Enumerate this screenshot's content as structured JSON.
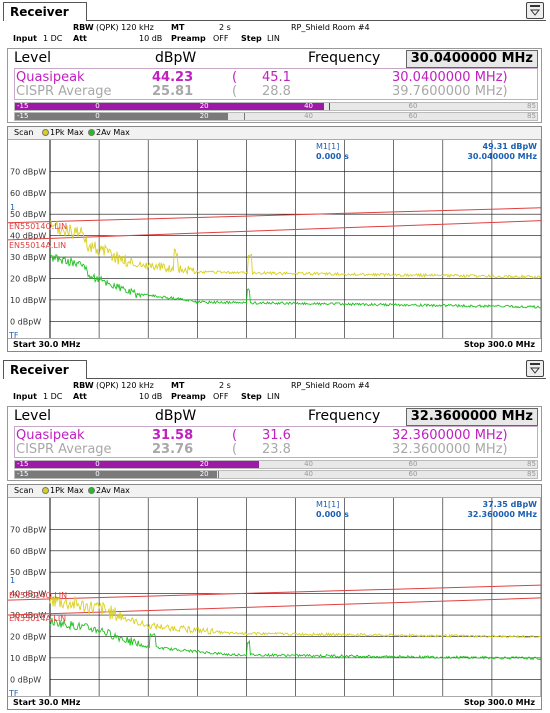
{
  "panels": [
    {
      "tab_label": "Receiver",
      "settings": {
        "rbw_label": "RBW",
        "rbw_value": "(QPK) 120 kHz",
        "mt_label": "MT",
        "mt_value": "2 s",
        "title": "RP_Shield Room #4",
        "input_label": "Input",
        "input_value": "1 DC",
        "att_label": "Att",
        "att_value": "10 dB",
        "preamp_label": "Preamp",
        "preamp_value": "OFF",
        "step_label": "Step",
        "step_value": "LIN"
      },
      "level_label": "Level",
      "unit_label": "dBpW",
      "frequency_label": "Frequency",
      "frequency_value": "30.0400000 MHz",
      "quasipeak": {
        "label": "Quasipeak",
        "value": "44.23",
        "paren_open": "(",
        "max": "45.1",
        "freq": "30.0400000 MHz)"
      },
      "cispr": {
        "label": "CISPR Average",
        "value": "25.81",
        "paren_open": "(",
        "max": "28.8",
        "freq": "39.7600000 MHz)"
      },
      "bar_ticks": [
        "-15",
        "0",
        "20",
        "40",
        "60",
        "85"
      ],
      "qp_bar_level": 44.23,
      "av_bar_level": 25.81,
      "qp_bar_marker": 45.1,
      "av_bar_marker": 28.8,
      "scan_label": "Scan",
      "trace1_label": "1Pk Max",
      "trace2_label": "2Av Max",
      "marker_name": "M1[1]",
      "marker_value": "49.31 dBpW",
      "marker_time": "0.000 s",
      "marker_freq": "30.040000 MHz",
      "y_labels": [
        "70 dBpW",
        "60 dBpW",
        "50 dBpW",
        "40 dBpW",
        "30 dBpW",
        "20 dBpW",
        "10 dBpW",
        "0 dBpW"
      ],
      "limit_q_label": "EN55014Q.LIN",
      "limit_a_label": "EN55014A.LIN",
      "marker_label": "1",
      "tf_label": "TF",
      "start_label": "Start 30.0 MHz",
      "stop_label": "Stop 300.0 MHz"
    },
    {
      "tab_label": "Receiver",
      "settings": {
        "rbw_label": "RBW",
        "rbw_value": "(QPK) 120 kHz",
        "mt_label": "MT",
        "mt_value": "2 s",
        "title": "RP_Shield Room #4",
        "input_label": "Input",
        "input_value": "1 DC",
        "att_label": "Att",
        "att_value": "10 dB",
        "preamp_label": "Preamp",
        "preamp_value": "OFF",
        "step_label": "Step",
        "step_value": "LIN"
      },
      "level_label": "Level",
      "unit_label": "dBpW",
      "frequency_label": "Frequency",
      "frequency_value": "32.3600000 MHz",
      "quasipeak": {
        "label": "Quasipeak",
        "value": "31.58",
        "paren_open": "(",
        "max": "31.6",
        "freq": "32.3600000 MHz)"
      },
      "cispr": {
        "label": "CISPR Average",
        "value": "23.76",
        "paren_open": "(",
        "max": "23.8",
        "freq": "32.3600000 MHz)"
      },
      "bar_ticks": [
        "-15",
        "0",
        "20",
        "40",
        "60",
        "85"
      ],
      "qp_bar_level": 31.58,
      "av_bar_level": 23.76,
      "qp_bar_marker": 31.6,
      "av_bar_marker": 23.8,
      "scan_label": "Scan",
      "trace1_label": "1Pk Max",
      "trace2_label": "2Av Max",
      "marker_name": "M1[1]",
      "marker_value": "37.35 dBpW",
      "marker_time": "0.000 s",
      "marker_freq": "32.360000 MHz",
      "y_labels": [
        "70 dBpW",
        "60 dBpW",
        "50 dBpW",
        "40 dBpW",
        "30 dBpW",
        "20 dBpW",
        "10 dBpW",
        "0 dBpW"
      ],
      "limit_q_label": "EN55014Q.LIN",
      "limit_a_label": "EN55014A.LIN",
      "marker_label": "1",
      "tf_label": "TF",
      "start_label": "Start 30.0 MHz",
      "stop_label": "Stop 300.0 MHz"
    }
  ],
  "colors": {
    "quasipeak": "#c020c0",
    "cispr": "#a8a8a8",
    "qp_bar": "#9c1aa6",
    "av_bar": "#7a7a7a",
    "trace_pk": "#d8d020",
    "trace_av": "#20c020",
    "limit": "#e04040",
    "axis_label": "#1a5fb4",
    "grid": "#111111"
  },
  "icons": {
    "menu": "menu-icon"
  }
}
